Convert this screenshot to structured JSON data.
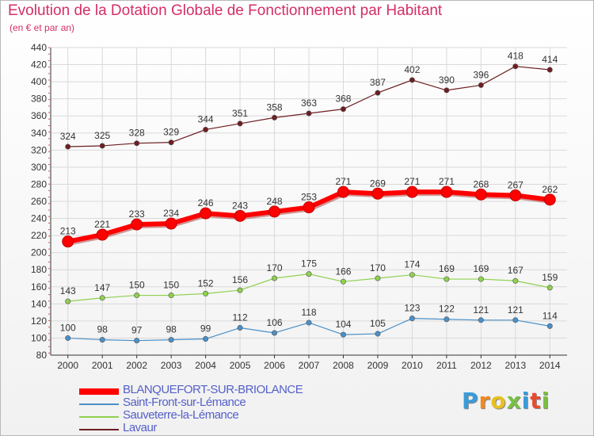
{
  "title": "Evolution de la Dotation Globale de Fonctionnement par Habitant",
  "subtitle": "(en € et par an)",
  "logo_text": "Proxiti",
  "chart_data": {
    "type": "line",
    "title": "Evolution de la Dotation Globale de Fonctionnement par Habitant",
    "subtitle": "(en € et par an)",
    "x": [
      "2000",
      "2001",
      "2002",
      "2003",
      "2004",
      "2005",
      "2006",
      "2007",
      "2008",
      "2009",
      "2010",
      "2011",
      "2012",
      "2013",
      "2014"
    ],
    "ylim": [
      80,
      440
    ],
    "yticks": [
      80,
      100,
      120,
      140,
      160,
      180,
      200,
      220,
      240,
      260,
      280,
      300,
      320,
      340,
      360,
      380,
      400,
      420,
      440
    ],
    "grid": true,
    "legend_position": "bottom-left",
    "series": [
      {
        "name": "BLANQUEFORT-SUR-BRIOLANCE",
        "color": "#ff0000",
        "values": [
          213,
          221,
          233,
          234,
          246,
          243,
          248,
          253,
          271,
          269,
          271,
          271,
          268,
          267,
          262
        ]
      },
      {
        "name": "Saint-Front-sur-Lémance",
        "color": "#4a90c8",
        "values": [
          100,
          98,
          97,
          98,
          99,
          112,
          106,
          118,
          104,
          105,
          123,
          122,
          121,
          121,
          114
        ]
      },
      {
        "name": "Sauveterre-la-Lémance",
        "color": "#8fd14f",
        "values": [
          143,
          147,
          150,
          150,
          152,
          156,
          170,
          175,
          166,
          170,
          174,
          169,
          169,
          167,
          159
        ]
      },
      {
        "name": "Lavaur",
        "color": "#6e1e22",
        "values": [
          324,
          325,
          328,
          329,
          344,
          351,
          358,
          363,
          368,
          387,
          402,
          390,
          396,
          418,
          414
        ]
      }
    ]
  }
}
